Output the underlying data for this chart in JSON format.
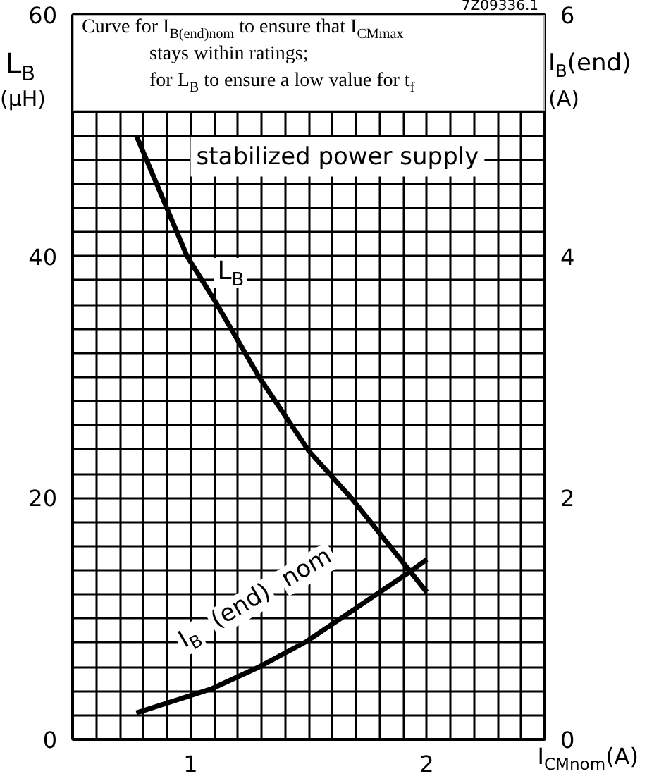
{
  "chart_data": {
    "type": "line",
    "title": "Curve for I$_{B(end)nom}$ to ensure that I$_{CMmax}$\nstays within ratings;\nfor L$_{B}$ to ensure a low value for t$_{f}$",
    "xlabel": "I$_{CMnom}$(A)",
    "ylabel": "L$_{B}$\n(µH)",
    "y2label": "I$_{B}$(end)\n(A)",
    "annotations": [
      "stabilized power supply",
      "7Z09336.1"
    ],
    "xlim": [
      0.5,
      2.5
    ],
    "xticks": [
      {
        "value": 0.6,
        "label": null
      },
      {
        "value": 0.7,
        "label": null
      },
      {
        "value": 0.8,
        "label": null
      },
      {
        "value": 0.9,
        "label": null
      },
      1,
      {
        "value": 1.1,
        "label": null
      },
      {
        "value": 1.2,
        "label": null
      },
      {
        "value": 1.3,
        "label": null
      },
      {
        "value": 1.4,
        "label": null
      },
      {
        "value": 1.5,
        "label": null
      },
      {
        "value": 1.6,
        "label": null
      },
      {
        "value": 1.7,
        "label": null
      },
      {
        "value": 1.8,
        "label": null
      },
      {
        "value": 1.9,
        "label": null
      },
      2,
      {
        "value": 2.1,
        "label": null
      },
      {
        "value": 2.2,
        "label": null
      },
      {
        "value": 2.3,
        "label": null
      },
      {
        "value": 2.4,
        "label": null
      }
    ],
    "ylim": [
      0,
      60
    ],
    "yticks": [
      0,
      {
        "value": 2,
        "label": null
      },
      {
        "value": 4,
        "label": null
      },
      {
        "value": 6,
        "label": null
      },
      {
        "value": 8,
        "label": null
      },
      {
        "value": 10,
        "label": null
      },
      {
        "value": 12,
        "label": null
      },
      {
        "value": 14,
        "label": null
      },
      {
        "value": 16,
        "label": null
      },
      {
        "value": 18,
        "label": null
      },
      20,
      {
        "value": 22,
        "label": null
      },
      {
        "value": 24,
        "label": null
      },
      {
        "value": 26,
        "label": null
      },
      {
        "value": 28,
        "label": null
      },
      {
        "value": 30,
        "label": null
      },
      {
        "value": 32,
        "label": null
      },
      {
        "value": 34,
        "label": null
      },
      {
        "value": 36,
        "label": null
      },
      {
        "value": 38,
        "label": null
      },
      40,
      {
        "value": 42,
        "label": null
      },
      {
        "value": 44,
        "label": null
      },
      {
        "value": 46,
        "label": null
      },
      {
        "value": 48,
        "label": null
      },
      {
        "value": 50,
        "label": null
      },
      {
        "value": 52,
        "label": null
      },
      60
    ],
    "y2lim": [
      0,
      6
    ],
    "y2ticks": [
      0,
      2,
      4,
      6
    ],
    "grid": true,
    "line_style": "solid",
    "bands": [
      {
        "axis": "y",
        "from": 52,
        "to": 60,
        "color": "#ffffff"
      }
    ],
    "series": [
      {
        "name": "L$_{B}$",
        "color": "#000000",
        "x": [
          0.77,
          0.985,
          1.1,
          1.29,
          1.5,
          1.68,
          2.0
        ],
        "values": [
          50,
          40,
          36.4,
          30,
          23.9,
          20,
          12.2
        ]
      },
      {
        "name": "I$_{B}$ (end) nom",
        "color": "#000000",
        "axis": "y2",
        "x": [
          0.77,
          1.09,
          1.29,
          1.49,
          1.71,
          1.93,
          2.0
        ],
        "values": [
          0.22,
          0.42,
          0.6,
          0.81,
          1.1,
          1.39,
          1.49
        ]
      }
    ]
  }
}
